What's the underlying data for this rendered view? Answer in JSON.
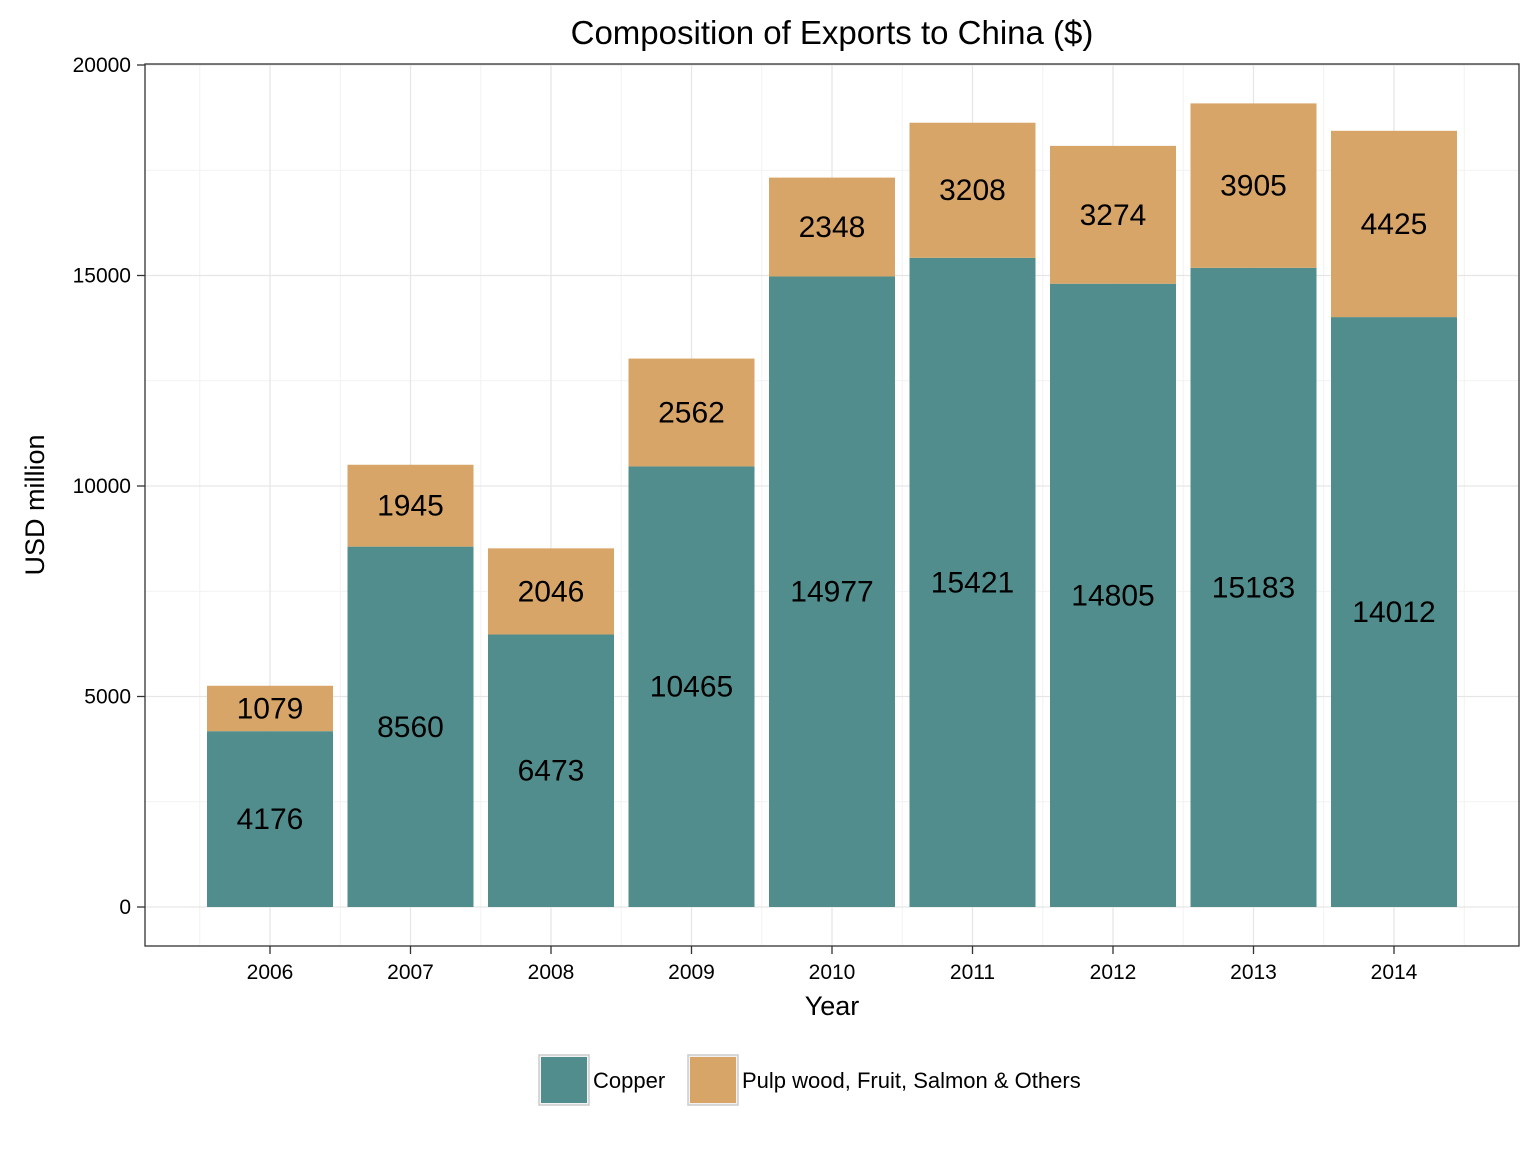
{
  "chart_data": {
    "type": "bar",
    "stacked": true,
    "title": "Composition of Exports to China ($)",
    "xlabel": "Year",
    "ylabel": "USD million",
    "categories": [
      "2006",
      "2007",
      "2008",
      "2009",
      "2010",
      "2011",
      "2012",
      "2013",
      "2014"
    ],
    "series": [
      {
        "name": "Copper",
        "color": "#508D8C",
        "values": [
          4176,
          8560,
          6473,
          10465,
          14977,
          15421,
          14805,
          15183,
          14012
        ]
      },
      {
        "name": "Pulp wood, Fruit, Salmon & Others",
        "color": "#D8A568",
        "values": [
          1079,
          1945,
          2046,
          2562,
          2348,
          3208,
          3274,
          3905,
          4425
        ]
      }
    ],
    "y_ticks": [
      0,
      5000,
      10000,
      15000,
      20000
    ],
    "y_tick_labels": [
      "0",
      "5000",
      "10000",
      "15000",
      "20000"
    ],
    "ylim": [
      -900,
      20000
    ],
    "grid": true,
    "legend_position": "bottom",
    "theme": "bw"
  }
}
